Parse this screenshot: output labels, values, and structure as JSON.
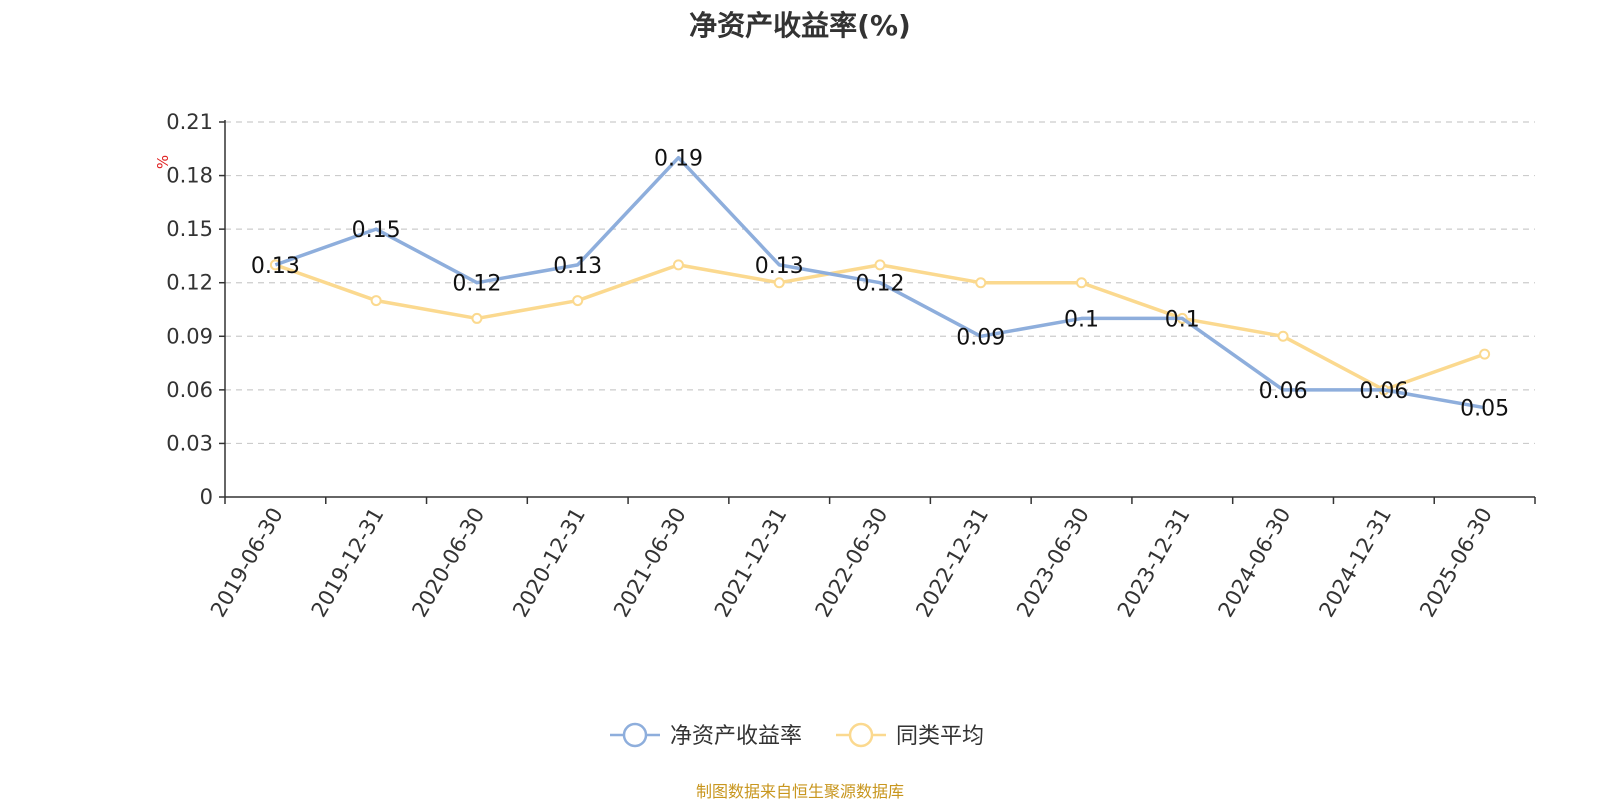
{
  "chart_data": {
    "type": "line",
    "title": "净资产收益率(%)",
    "ylabel": "%",
    "xlabel": "",
    "categories": [
      "2019-06-30",
      "2019-12-31",
      "2020-06-30",
      "2020-12-31",
      "2021-06-30",
      "2021-12-31",
      "2022-06-30",
      "2022-12-31",
      "2023-06-30",
      "2023-12-31",
      "2024-06-30",
      "2024-12-31",
      "2025-06-30"
    ],
    "y_ticks": [
      "0",
      "0.03",
      "0.06",
      "0.09",
      "0.12",
      "0.15",
      "0.18",
      "0.21"
    ],
    "ylim": [
      0,
      0.21
    ],
    "grid": true,
    "legend_position": "bottom-center",
    "series": [
      {
        "name": "净资产收益率",
        "color": "#8eaedc",
        "values": [
          0.13,
          0.15,
          0.12,
          0.13,
          0.19,
          0.13,
          0.12,
          0.09,
          0.1,
          0.1,
          0.06,
          0.06,
          0.05
        ],
        "labels": [
          "0.13",
          "0.15",
          "0.12",
          "0.13",
          "0.19",
          "0.13",
          "0.12",
          "0.09",
          "0.1",
          "0.1",
          "0.06",
          "0.06",
          "0.05"
        ]
      },
      {
        "name": "同类平均",
        "color": "#fbd98f",
        "values": [
          0.13,
          0.11,
          0.1,
          0.11,
          0.13,
          0.12,
          0.13,
          0.12,
          0.12,
          0.1,
          0.09,
          0.06,
          0.08
        ]
      }
    ]
  },
  "source": "制图数据来自恒生聚源数据库"
}
